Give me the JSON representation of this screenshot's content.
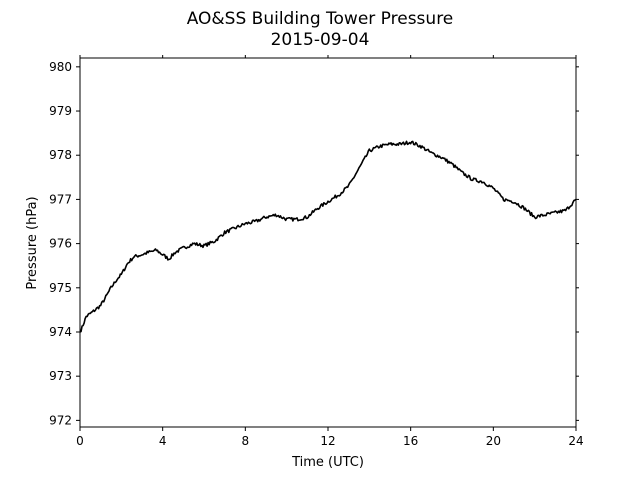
{
  "chart_data": {
    "type": "line",
    "title": "AO&SS Building Tower Pressure",
    "subtitle": "2015-09-04",
    "xlabel": "Time (UTC)",
    "ylabel": "Pressure (hPa)",
    "xlim": [
      0,
      24
    ],
    "ylim": [
      971.85,
      980.2
    ],
    "xticks": [
      0,
      4,
      8,
      12,
      16,
      20,
      24
    ],
    "yticks": [
      972,
      973,
      974,
      975,
      976,
      977,
      978,
      979,
      980
    ],
    "grid": false,
    "line_color": "#000000",
    "series": [
      {
        "x": [
          0,
          0.1,
          0.3,
          0.6,
          1.0,
          1.2,
          1.5,
          1.8,
          2.0,
          2.3,
          2.6,
          3.0,
          3.3,
          3.7,
          4.0,
          4.3,
          4.6,
          5.0,
          5.5,
          6.0,
          6.5,
          7.0,
          7.5,
          8.0,
          8.5,
          9.0,
          9.5,
          10.0,
          10.5,
          11.0,
          11.5,
          12.0,
          12.5,
          13.0,
          13.5,
          14.0,
          14.5,
          15.0,
          15.5,
          16.0,
          16.5,
          17.0,
          17.5,
          18.0,
          18.5,
          19.0,
          19.5,
          20.0,
          20.5,
          21.0,
          21.5,
          22.0,
          22.5,
          23.0,
          23.5,
          24.0
        ],
        "y": [
          974.0,
          974.1,
          974.35,
          974.45,
          974.6,
          974.75,
          975.0,
          975.2,
          975.3,
          975.55,
          975.7,
          975.75,
          975.8,
          975.85,
          975.75,
          975.65,
          975.8,
          975.9,
          976.0,
          975.95,
          976.05,
          976.25,
          976.35,
          976.45,
          976.5,
          976.6,
          976.65,
          976.55,
          976.55,
          976.6,
          976.8,
          976.95,
          977.1,
          977.3,
          977.7,
          978.1,
          978.2,
          978.25,
          978.25,
          978.3,
          978.2,
          978.05,
          977.95,
          977.8,
          977.6,
          977.45,
          977.4,
          977.25,
          977.0,
          976.95,
          976.8,
          976.6,
          976.65,
          976.7,
          976.75,
          977.0
        ]
      }
    ]
  }
}
